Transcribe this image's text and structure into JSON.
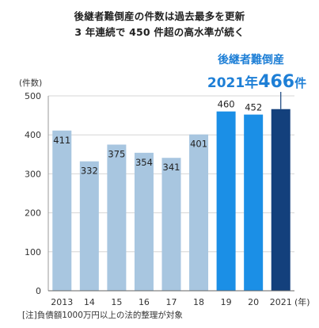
{
  "chart_data": {
    "type": "bar",
    "title_line1": "後継者難倒産の件数は過去最多を更新",
    "title_line2": "3 年連続で 450 件超の高水準が続く",
    "ylabel": "(件数)",
    "xunit": "(年)",
    "ylim": [
      0,
      500
    ],
    "yticks": [
      0,
      100,
      200,
      300,
      400,
      500
    ],
    "categories": [
      "2013",
      "14",
      "15",
      "16",
      "17",
      "18",
      "19",
      "20",
      "2021"
    ],
    "values": [
      411,
      332,
      375,
      354,
      341,
      401,
      460,
      452,
      466
    ],
    "value_labels": [
      "411",
      "332",
      "375",
      "354",
      "341",
      "401",
      "460",
      "452",
      ""
    ],
    "colors": [
      "#a8c6e0",
      "#a8c6e0",
      "#a8c6e0",
      "#a8c6e0",
      "#a8c6e0",
      "#a8c6e0",
      "#1b8fe6",
      "#1b8fe6",
      "#13407c"
    ],
    "callout": {
      "name": "後継者難倒産",
      "year_text": "2021年",
      "value_text": "466",
      "unit_text": "件"
    },
    "note": "[注]負債額1000万円以上の法的整理が対象"
  }
}
